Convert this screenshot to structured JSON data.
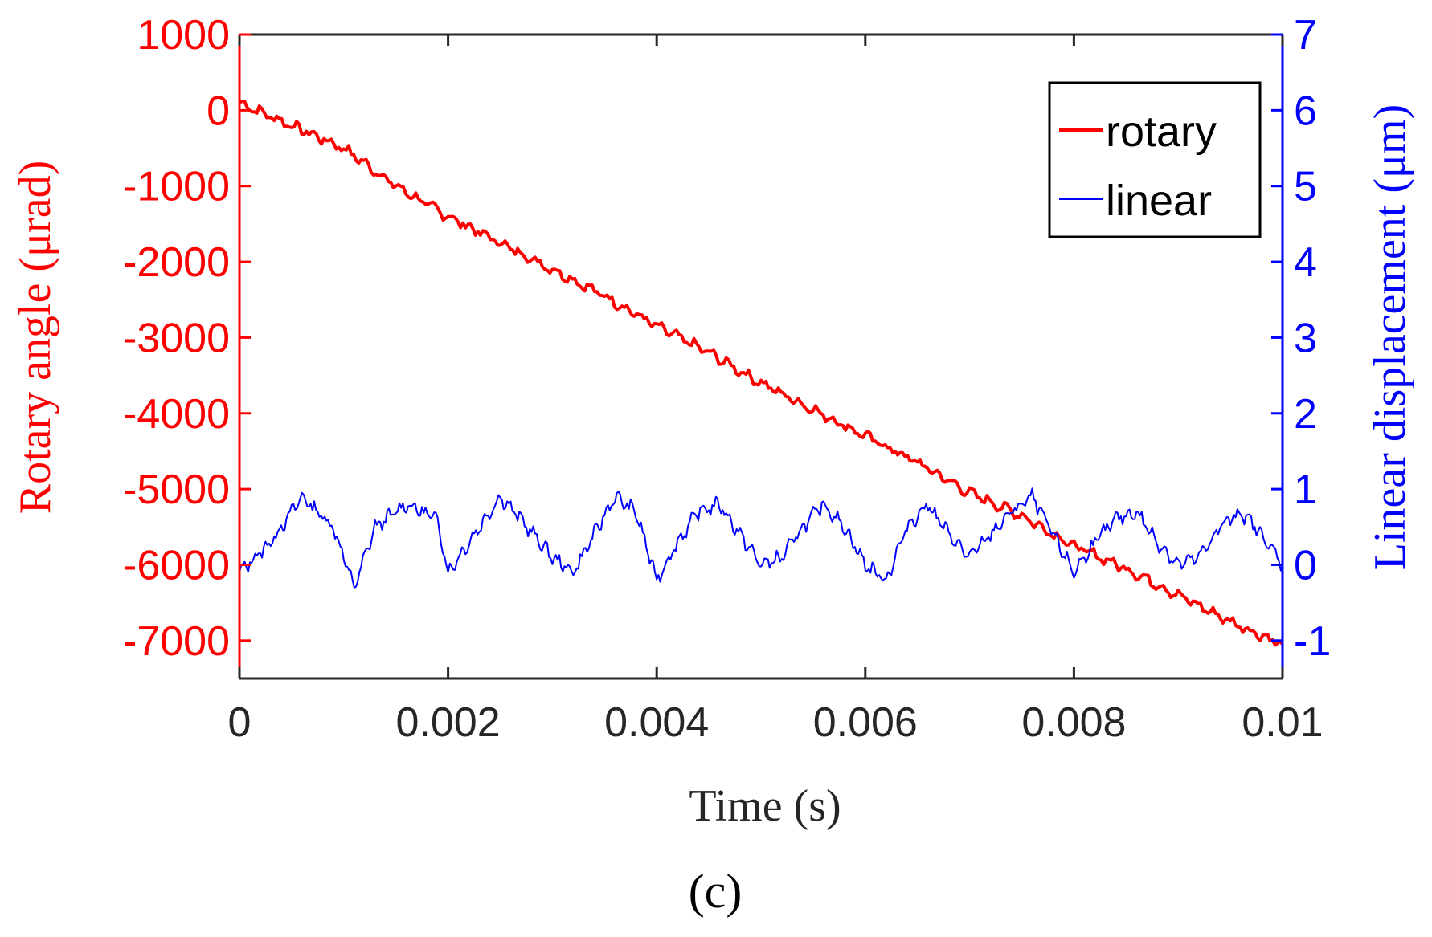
{
  "chart_data": {
    "type": "line",
    "title": "",
    "xlabel": "Time (s)",
    "ylabel_left": "Rotary angle (μrad)",
    "ylabel_right": "Linear displacement (μm)",
    "xlim": [
      0,
      0.01
    ],
    "ylim_left": [
      -7500,
      1000
    ],
    "ylim_right": [
      -1.5,
      7
    ],
    "x_ticks": [
      "0",
      "0.002",
      "0.004",
      "0.006",
      "0.008",
      "0.01"
    ],
    "x_tick_values": [
      0,
      0.002,
      0.004,
      0.006,
      0.008,
      0.01
    ],
    "y_left_ticks": [
      "1000",
      "0",
      "-1000",
      "-2000",
      "-3000",
      "-4000",
      "-5000",
      "-6000",
      "-7000"
    ],
    "y_left_tick_values": [
      1000,
      0,
      -1000,
      -2000,
      -3000,
      -4000,
      -5000,
      -6000,
      -7000
    ],
    "y_right_ticks": [
      "7",
      "6",
      "5",
      "4",
      "3",
      "2",
      "1",
      "0",
      "-1"
    ],
    "y_right_tick_values": [
      7,
      6,
      5,
      4,
      3,
      2,
      1,
      0,
      -1
    ],
    "grid": false,
    "legend_position": "top-right",
    "series": [
      {
        "name": "rotary",
        "axis": "left",
        "color": "#ff0000",
        "x": [
          0,
          0.0005,
          0.001,
          0.0015,
          0.002,
          0.0025,
          0.003,
          0.0035,
          0.004,
          0.0045,
          0.005,
          0.0055,
          0.006,
          0.0065,
          0.007,
          0.0075,
          0.008,
          0.0085,
          0.009,
          0.0095,
          0.01
        ],
        "values": [
          100,
          -200,
          -500,
          -1000,
          -1400,
          -1750,
          -2100,
          -2450,
          -2850,
          -3200,
          -3600,
          -3950,
          -4300,
          -4650,
          -5050,
          -5350,
          -5750,
          -6050,
          -6400,
          -6750,
          -7050
        ]
      },
      {
        "name": "linear",
        "axis": "right",
        "color": "#0000ff",
        "x": [
          0,
          0.0003,
          0.0006,
          0.0009,
          0.0011,
          0.0013,
          0.0016,
          0.0019,
          0.002,
          0.0023,
          0.0025,
          0.0027,
          0.003,
          0.0032,
          0.0034,
          0.0036,
          0.0038,
          0.004,
          0.0042,
          0.0044,
          0.0046,
          0.0048,
          0.005,
          0.0052,
          0.0054,
          0.0056,
          0.0058,
          0.006,
          0.0062,
          0.0064,
          0.0066,
          0.0068,
          0.007,
          0.0072,
          0.0074,
          0.0076,
          0.0078,
          0.008,
          0.0082,
          0.0084,
          0.0086,
          0.0088,
          0.009,
          0.0092,
          0.0094,
          0.0096,
          0.0098,
          0.01
        ],
        "values": [
          -0.1,
          0.3,
          0.9,
          0.5,
          -0.3,
          0.5,
          0.8,
          0.6,
          -0.1,
          0.5,
          0.9,
          0.6,
          0.1,
          -0.1,
          0.4,
          0.9,
          0.7,
          -0.2,
          0.3,
          0.7,
          0.8,
          0.4,
          0.0,
          0.1,
          0.5,
          0.8,
          0.5,
          0.0,
          -0.2,
          0.5,
          0.8,
          0.4,
          0.1,
          0.4,
          0.7,
          0.9,
          0.4,
          -0.1,
          0.3,
          0.6,
          0.7,
          0.3,
          0.0,
          0.1,
          0.5,
          0.7,
          0.4,
          0.0
        ]
      }
    ]
  },
  "caption": "(c)"
}
